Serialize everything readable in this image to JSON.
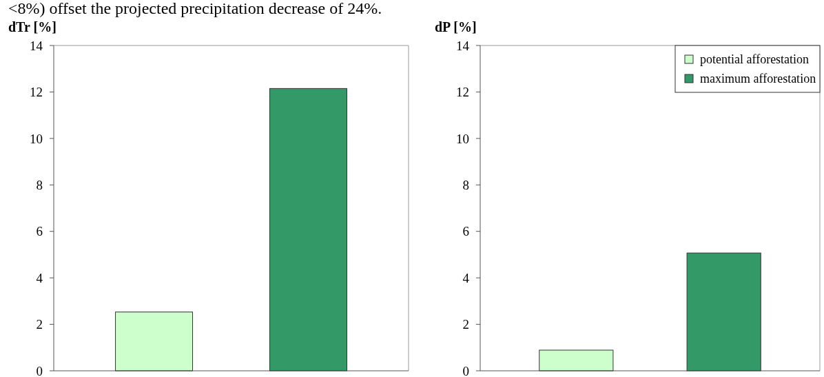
{
  "chart_data": [
    {
      "type": "bar",
      "ylabel": "dTr [%]",
      "annotations": [
        "<8%) offset the projected precipitation decrease of 24%."
      ],
      "categories": [
        null,
        null
      ],
      "values": [
        2.53,
        12.15
      ],
      "colors": [
        "#ccffcc",
        "#339966"
      ],
      "ylim": [
        0,
        14
      ],
      "yticks": [
        0,
        2,
        4,
        6,
        8,
        10,
        12,
        14
      ],
      "grid": false,
      "legend": false
    },
    {
      "type": "bar",
      "ylabel": "dP [%]",
      "categories": [
        null,
        null
      ],
      "series": [
        {
          "name": "potential afforestation",
          "color": "#ccffcc",
          "values": [
            0.89,
            null
          ]
        },
        {
          "name": "maximum afforestation",
          "color": "#339966",
          "values": [
            null,
            5.07
          ]
        }
      ],
      "ylim": [
        0,
        14
      ],
      "yticks": [
        0,
        2,
        4,
        6,
        8,
        10,
        12,
        14
      ],
      "grid": false,
      "legend": "top right"
    }
  ]
}
